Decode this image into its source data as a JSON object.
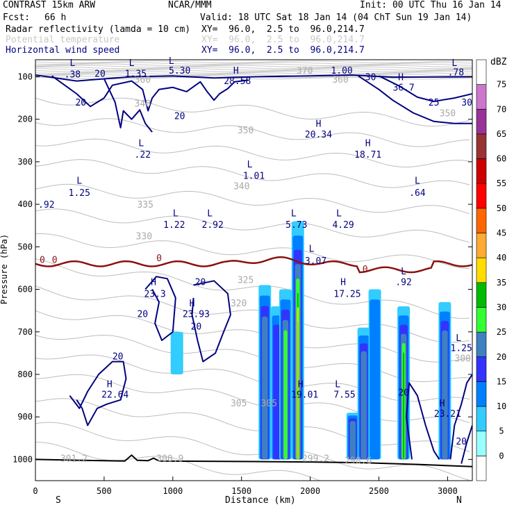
{
  "header": {
    "model": "CONTRAST 15km ARW",
    "org": "NCAR/MMM",
    "init": "Init: 00 UTC Thu 16 Jan 14",
    "fcst_label": "Fcst:",
    "fcst_value": "66 h",
    "valid": "Valid: 18 UTC Sat 18 Jan 14 (04 ChT Sun 19 Jan 14)"
  },
  "fields": [
    {
      "name": "Radar reflectivity (lamda = 10 cm)",
      "xy": "XY=  96.0,  2.5 to  96.0,214.7",
      "color": "#000080"
    },
    {
      "name": "Potential temperature",
      "xy": "XY=  96.0,  2.5 to  96.0,214.7",
      "color": "#c8c8c8"
    },
    {
      "name": "Horizontal wind speed",
      "xy": "XY=  96.0,  2.5 to  96.0,214.7",
      "color": "#000080"
    }
  ],
  "chart_data": {
    "type": "cross-section",
    "xlabel": "Distance (km)",
    "ylabel": "Pressure (hPa)",
    "xlim": [
      0,
      3180
    ],
    "ylim": [
      1050,
      60
    ],
    "x_ticks": [
      0,
      500,
      1000,
      1500,
      2000,
      2500,
      3000
    ],
    "y_ticks": [
      100,
      200,
      300,
      400,
      500,
      600,
      700,
      800,
      900,
      1000
    ],
    "left_end": "S",
    "right_end": "N",
    "colorbar": {
      "unit": "dBZ",
      "levels": [
        0,
        5,
        10,
        15,
        20,
        25,
        30,
        35,
        40,
        45,
        50,
        55,
        60,
        65,
        70,
        75
      ],
      "colors": [
        "#ffffff",
        "#99ffff",
        "#33ccff",
        "#0080ff",
        "#3333ff",
        "#3f80c0",
        "#33ff33",
        "#00bb00",
        "#ffdd00",
        "#ffaa33",
        "#ff6600",
        "#ff0000",
        "#cc0000",
        "#993333",
        "#993399",
        "#cc77cc",
        "#ffffff"
      ]
    },
    "reflectivity_columns": [
      {
        "x": 1670,
        "top": 590,
        "bottom": 1000,
        "max": 20
      },
      {
        "x": 1760,
        "top": 640,
        "bottom": 1000,
        "max": 15
      },
      {
        "x": 1820,
        "top": 600,
        "bottom": 1000,
        "max": 25
      },
      {
        "x": 1910,
        "top": 440,
        "bottom": 1000,
        "max": 40
      },
      {
        "x": 2310,
        "top": 890,
        "bottom": 1000,
        "max": 20
      },
      {
        "x": 2390,
        "top": 690,
        "bottom": 1000,
        "max": 20
      },
      {
        "x": 2470,
        "top": 600,
        "bottom": 1000,
        "max": 10
      },
      {
        "x": 2680,
        "top": 640,
        "bottom": 1000,
        "max": 30
      },
      {
        "x": 2980,
        "top": 630,
        "bottom": 1000,
        "max": 20
      },
      {
        "x": 1030,
        "top": 700,
        "bottom": 800,
        "max": 5
      }
    ],
    "wind_labels": [
      {
        "t": "L",
        "x": 270,
        "p": 75
      },
      {
        "t": ".38",
        "x": 270,
        "p": 102
      },
      {
        "t": "20",
        "x": 470,
        "p": 100
      },
      {
        "t": "L",
        "x": 700,
        "p": 75
      },
      {
        "t": "1.35",
        "x": 730,
        "p": 100
      },
      {
        "t": "L",
        "x": 990,
        "p": 70
      },
      {
        "t": "5.30",
        "x": 1050,
        "p": 93
      },
      {
        "t": "H",
        "x": 1460,
        "p": 93
      },
      {
        "t": "28.58",
        "x": 1470,
        "p": 117
      },
      {
        "t": "1.00",
        "x": 2230,
        "p": 93
      },
      {
        "t": "30",
        "x": 2440,
        "p": 108
      },
      {
        "t": "H",
        "x": 2660,
        "p": 108
      },
      {
        "t": "36.7",
        "x": 2680,
        "p": 133
      },
      {
        "t": "L",
        "x": 3050,
        "p": 75
      },
      {
        "t": ".78",
        "x": 3060,
        "p": 97
      },
      {
        "t": "25",
        "x": 2900,
        "p": 168
      },
      {
        "t": "30",
        "x": 3140,
        "p": 168
      },
      {
        "t": "20",
        "x": 330,
        "p": 168
      },
      {
        "t": "20",
        "x": 1050,
        "p": 200
      },
      {
        "t": "L",
        "x": 770,
        "p": 263
      },
      {
        "t": ".22",
        "x": 780,
        "p": 290
      },
      {
        "t": "H",
        "x": 2060,
        "p": 218
      },
      {
        "t": "20.34",
        "x": 2060,
        "p": 243
      },
      {
        "t": "H",
        "x": 2420,
        "p": 263
      },
      {
        "t": "18.71",
        "x": 2420,
        "p": 290
      },
      {
        "t": "L",
        "x": 1560,
        "p": 313
      },
      {
        "t": "1.01",
        "x": 1590,
        "p": 340
      },
      {
        "t": "L",
        "x": 320,
        "p": 352
      },
      {
        "t": "1.25",
        "x": 320,
        "p": 380
      },
      {
        "t": "L",
        "x": 2780,
        "p": 352
      },
      {
        "t": ".64",
        "x": 2780,
        "p": 380
      },
      {
        "t": ".92",
        "x": 80,
        "p": 408
      },
      {
        "t": "L",
        "x": 1020,
        "p": 428
      },
      {
        "t": "1.22",
        "x": 1010,
        "p": 455
      },
      {
        "t": "L",
        "x": 1270,
        "p": 428
      },
      {
        "t": "2.92",
        "x": 1290,
        "p": 455
      },
      {
        "t": "L",
        "x": 1880,
        "p": 428
      },
      {
        "t": "5.73",
        "x": 1900,
        "p": 455
      },
      {
        "t": "L",
        "x": 2210,
        "p": 428
      },
      {
        "t": "4.29",
        "x": 2240,
        "p": 455
      },
      {
        "t": "L",
        "x": 2010,
        "p": 512
      },
      {
        "t": "3.07",
        "x": 2040,
        "p": 540
      },
      {
        "t": "L",
        "x": 2680,
        "p": 565
      },
      {
        "t": ".92",
        "x": 2680,
        "p": 590
      },
      {
        "t": "H",
        "x": 860,
        "p": 590
      },
      {
        "t": "23.3",
        "x": 870,
        "p": 618
      },
      {
        "t": "20",
        "x": 1200,
        "p": 590
      },
      {
        "t": "H",
        "x": 1140,
        "p": 640
      },
      {
        "t": "23.93",
        "x": 1170,
        "p": 665
      },
      {
        "t": "20",
        "x": 780,
        "p": 665
      },
      {
        "t": "20",
        "x": 1170,
        "p": 695
      },
      {
        "t": "H",
        "x": 2240,
        "p": 590
      },
      {
        "t": "17.25",
        "x": 2270,
        "p": 618
      },
      {
        "t": "20",
        "x": 600,
        "p": 765
      },
      {
        "t": "H",
        "x": 540,
        "p": 830
      },
      {
        "t": "22.64",
        "x": 580,
        "p": 855
      },
      {
        "t": "H",
        "x": 1930,
        "p": 830
      },
      {
        "t": "19.01",
        "x": 1960,
        "p": 855
      },
      {
        "t": "L",
        "x": 2200,
        "p": 830
      },
      {
        "t": "7.55",
        "x": 2250,
        "p": 855
      },
      {
        "t": "20",
        "x": 2680,
        "p": 850
      },
      {
        "t": "L",
        "x": 3080,
        "p": 722
      },
      {
        "t": "1.25",
        "x": 3100,
        "p": 745
      },
      {
        "t": "H",
        "x": 2960,
        "p": 875
      },
      {
        "t": "23.21",
        "x": 3000,
        "p": 900
      },
      {
        "t": "20",
        "x": 3100,
        "p": 965
      }
    ],
    "theta_labels": [
      {
        "t": "360",
        "x": 780,
        "p": 114
      },
      {
        "t": "370",
        "x": 1960,
        "p": 93
      },
      {
        "t": "360",
        "x": 2220,
        "p": 114
      },
      {
        "t": "350",
        "x": 3000,
        "p": 193
      },
      {
        "t": "350",
        "x": 1530,
        "p": 233
      },
      {
        "t": "340",
        "x": 1500,
        "p": 365
      },
      {
        "t": "340",
        "x": 780,
        "p": 170
      },
      {
        "t": "335",
        "x": 800,
        "p": 408
      },
      {
        "t": "330",
        "x": 790,
        "p": 482
      },
      {
        "t": "325",
        "x": 1530,
        "p": 585
      },
      {
        "t": "320",
        "x": 1480,
        "p": 640
      },
      {
        "t": "305",
        "x": 1480,
        "p": 875
      },
      {
        "t": "305",
        "x": 1700,
        "p": 875
      },
      {
        "t": "300",
        "x": 3110,
        "p": 770
      },
      {
        "t": "301.2",
        "x": 280,
        "p": 1005
      },
      {
        "t": "300.9",
        "x": 980,
        "p": 1005
      },
      {
        "t": "299.2",
        "x": 2040,
        "p": 1005
      },
      {
        "t": "298.6",
        "x": 2350,
        "p": 1010
      }
    ],
    "zero_labels": [
      {
        "t": "0",
        "x": 50,
        "p": 538
      },
      {
        "t": "0",
        "x": 140,
        "p": 538
      },
      {
        "t": "0",
        "x": 900,
        "p": 534
      },
      {
        "t": "0",
        "x": 2400,
        "p": 560
      }
    ]
  }
}
